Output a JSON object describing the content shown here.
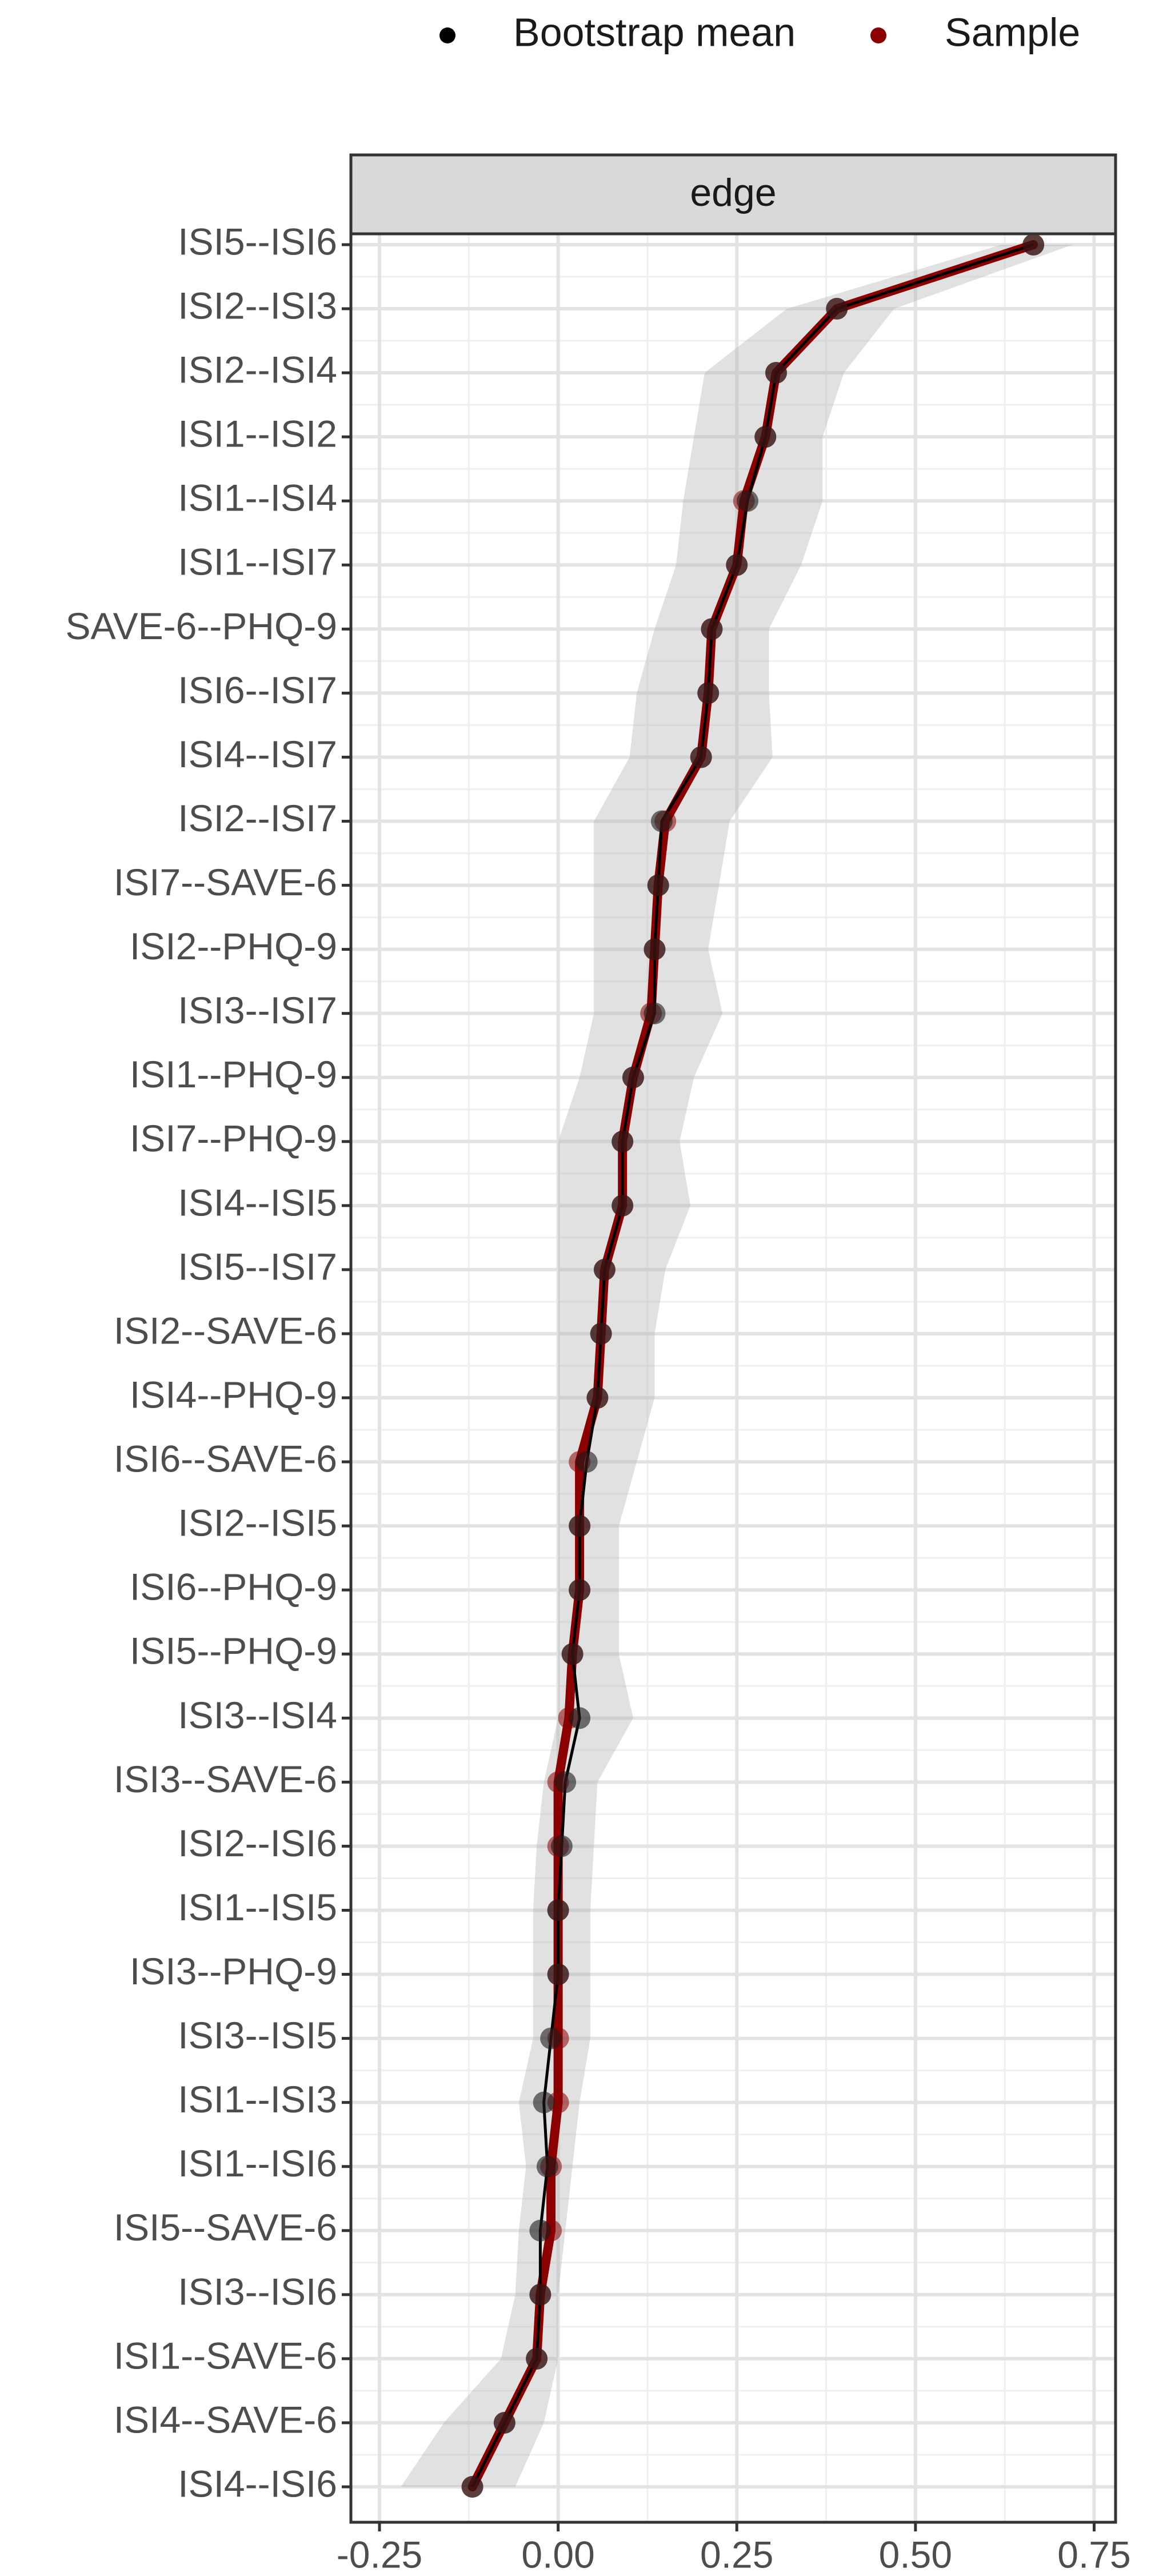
{
  "chart_data": {
    "type": "line",
    "facet_label": "edge",
    "orientation": "horizontal",
    "x_ticks": [
      -0.25,
      0.0,
      0.25,
      0.5,
      0.75
    ],
    "x_tick_labels": [
      "-0.25",
      "0.00",
      "0.25",
      "0.50",
      "0.75"
    ],
    "xlim": [
      -0.29,
      0.78
    ],
    "grid": true,
    "legend_position": "top-right",
    "legend": [
      {
        "name": "Bootstrap mean",
        "color": "#000000"
      },
      {
        "name": "Sample",
        "color": "#8b0000"
      }
    ],
    "edges": [
      {
        "label": "ISI5--ISI6",
        "sample": 0.665,
        "boot_mean": 0.665,
        "ci_low": 0.62,
        "ci_high": 0.72
      },
      {
        "label": "ISI2--ISI3",
        "sample": 0.39,
        "boot_mean": 0.39,
        "ci_low": 0.32,
        "ci_high": 0.47
      },
      {
        "label": "ISI2--ISI4",
        "sample": 0.305,
        "boot_mean": 0.305,
        "ci_low": 0.205,
        "ci_high": 0.4
      },
      {
        "label": "ISI1--ISI2",
        "sample": 0.29,
        "boot_mean": 0.29,
        "ci_low": 0.19,
        "ci_high": 0.37
      },
      {
        "label": "ISI1--ISI4",
        "sample": 0.26,
        "boot_mean": 0.265,
        "ci_low": 0.175,
        "ci_high": 0.37
      },
      {
        "label": "ISI1--ISI7",
        "sample": 0.25,
        "boot_mean": 0.25,
        "ci_low": 0.165,
        "ci_high": 0.34
      },
      {
        "label": "SAVE-6--PHQ-9",
        "sample": 0.215,
        "boot_mean": 0.215,
        "ci_low": 0.135,
        "ci_high": 0.295
      },
      {
        "label": "ISI6--ISI7",
        "sample": 0.21,
        "boot_mean": 0.21,
        "ci_low": 0.11,
        "ci_high": 0.295
      },
      {
        "label": "ISI4--ISI7",
        "sample": 0.2,
        "boot_mean": 0.2,
        "ci_low": 0.1,
        "ci_high": 0.3
      },
      {
        "label": "ISI2--ISI7",
        "sample": 0.15,
        "boot_mean": 0.145,
        "ci_low": 0.05,
        "ci_high": 0.24
      },
      {
        "label": "ISI7--SAVE-6",
        "sample": 0.14,
        "boot_mean": 0.14,
        "ci_low": 0.05,
        "ci_high": 0.225
      },
      {
        "label": "ISI2--PHQ-9",
        "sample": 0.135,
        "boot_mean": 0.135,
        "ci_low": 0.05,
        "ci_high": 0.21
      },
      {
        "label": "ISI3--ISI7",
        "sample": 0.13,
        "boot_mean": 0.135,
        "ci_low": 0.05,
        "ci_high": 0.23
      },
      {
        "label": "ISI1--PHQ-9",
        "sample": 0.105,
        "boot_mean": 0.105,
        "ci_low": 0.03,
        "ci_high": 0.19
      },
      {
        "label": "ISI7--PHQ-9",
        "sample": 0.09,
        "boot_mean": 0.09,
        "ci_low": 0.0,
        "ci_high": 0.17
      },
      {
        "label": "ISI4--ISI5",
        "sample": 0.09,
        "boot_mean": 0.09,
        "ci_low": 0.0,
        "ci_high": 0.185
      },
      {
        "label": "ISI5--ISI7",
        "sample": 0.065,
        "boot_mean": 0.065,
        "ci_low": 0.0,
        "ci_high": 0.15
      },
      {
        "label": "ISI2--SAVE-6",
        "sample": 0.06,
        "boot_mean": 0.06,
        "ci_low": 0.0,
        "ci_high": 0.135
      },
      {
        "label": "ISI4--PHQ-9",
        "sample": 0.055,
        "boot_mean": 0.055,
        "ci_low": 0.0,
        "ci_high": 0.135
      },
      {
        "label": "ISI6--SAVE-6",
        "sample": 0.03,
        "boot_mean": 0.04,
        "ci_low": 0.0,
        "ci_high": 0.11
      },
      {
        "label": "ISI2--ISI5",
        "sample": 0.03,
        "boot_mean": 0.03,
        "ci_low": 0.0,
        "ci_high": 0.085
      },
      {
        "label": "ISI6--PHQ-9",
        "sample": 0.03,
        "boot_mean": 0.03,
        "ci_low": 0.0,
        "ci_high": 0.085
      },
      {
        "label": "ISI5--PHQ-9",
        "sample": 0.02,
        "boot_mean": 0.02,
        "ci_low": 0.0,
        "ci_high": 0.085
      },
      {
        "label": "ISI3--ISI4",
        "sample": 0.015,
        "boot_mean": 0.03,
        "ci_low": 0.0,
        "ci_high": 0.105
      },
      {
        "label": "ISI3--SAVE-6",
        "sample": 0.0,
        "boot_mean": 0.01,
        "ci_low": -0.02,
        "ci_high": 0.055
      },
      {
        "label": "ISI2--ISI6",
        "sample": 0.0,
        "boot_mean": 0.005,
        "ci_low": -0.03,
        "ci_high": 0.05
      },
      {
        "label": "ISI1--ISI5",
        "sample": 0.0,
        "boot_mean": 0.0,
        "ci_low": -0.035,
        "ci_high": 0.045
      },
      {
        "label": "ISI3--PHQ-9",
        "sample": 0.0,
        "boot_mean": 0.0,
        "ci_low": -0.035,
        "ci_high": 0.045
      },
      {
        "label": "ISI3--ISI5",
        "sample": 0.0,
        "boot_mean": -0.01,
        "ci_low": -0.035,
        "ci_high": 0.045
      },
      {
        "label": "ISI1--ISI3",
        "sample": 0.0,
        "boot_mean": -0.02,
        "ci_low": -0.055,
        "ci_high": 0.03
      },
      {
        "label": "ISI1--ISI6",
        "sample": -0.01,
        "boot_mean": -0.015,
        "ci_low": -0.045,
        "ci_high": 0.02
      },
      {
        "label": "ISI5--SAVE-6",
        "sample": -0.01,
        "boot_mean": -0.025,
        "ci_low": -0.055,
        "ci_high": 0.01
      },
      {
        "label": "ISI3--ISI6",
        "sample": -0.025,
        "boot_mean": -0.025,
        "ci_low": -0.06,
        "ci_high": 0.0
      },
      {
        "label": "ISI1--SAVE-6",
        "sample": -0.03,
        "boot_mean": -0.03,
        "ci_low": -0.08,
        "ci_high": 0.0
      },
      {
        "label": "ISI4--SAVE-6",
        "sample": -0.075,
        "boot_mean": -0.075,
        "ci_low": -0.16,
        "ci_high": -0.02
      },
      {
        "label": "ISI4--ISI6",
        "sample": -0.12,
        "boot_mean": -0.12,
        "ci_low": -0.22,
        "ci_high": -0.06
      }
    ]
  }
}
